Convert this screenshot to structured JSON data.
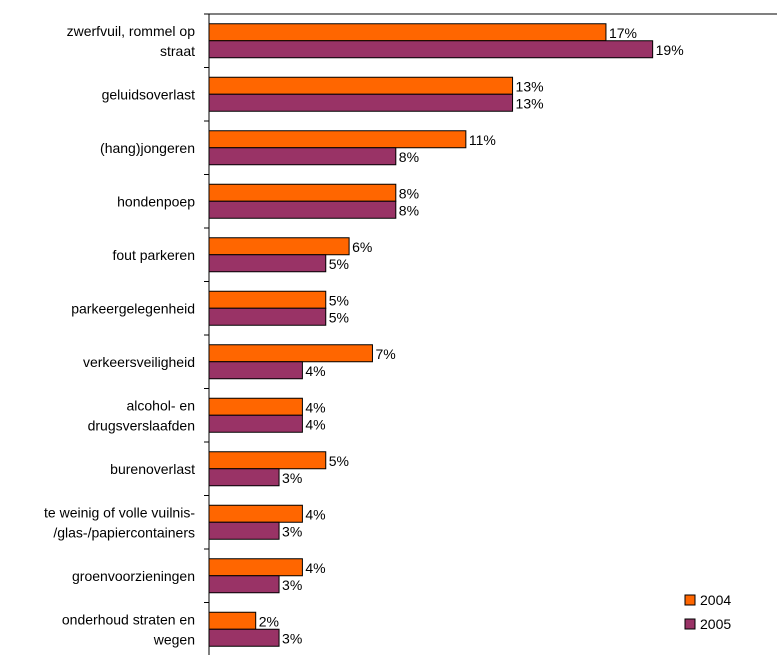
{
  "chart_data": {
    "type": "bar",
    "orientation": "horizontal",
    "categories": [
      [
        "zwerfvuil, rommel op",
        "straat"
      ],
      [
        "geluidsoverlast"
      ],
      [
        "(hang)jongeren"
      ],
      [
        "hondenpoep"
      ],
      [
        "fout parkeren"
      ],
      [
        "parkeergelegenheid"
      ],
      [
        "verkeersveiligheid"
      ],
      [
        "alcohol- en",
        "drugsverslaafden"
      ],
      [
        "burenoverlast"
      ],
      [
        "te weinig of volle vuilnis-",
        "/glas-/papiercontainers"
      ],
      [
        "groenvoorzieningen"
      ],
      [
        "onderhoud straten en",
        "wegen"
      ]
    ],
    "series": [
      {
        "name": "2004",
        "color": "#ff6600",
        "values": [
          17,
          13,
          11,
          8,
          6,
          5,
          7,
          4,
          5,
          4,
          4,
          2
        ]
      },
      {
        "name": "2005",
        "color": "#993366",
        "values": [
          19,
          13,
          8,
          8,
          5,
          5,
          4,
          4,
          3,
          3,
          3,
          3
        ]
      }
    ],
    "value_suffix": "%",
    "xlim": [
      0,
      25
    ],
    "legend_position": "bottom-right",
    "grid": false
  }
}
